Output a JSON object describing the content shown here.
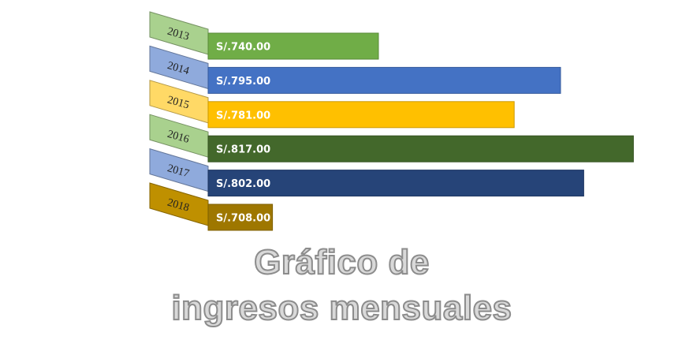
{
  "chart_data": {
    "type": "bar",
    "orientation": "horizontal",
    "categories": [
      "2013",
      "2014",
      "2015",
      "2016",
      "2017",
      "2018"
    ],
    "values": [
      740,
      795,
      781,
      817,
      802,
      708
    ],
    "value_labels": [
      "S/.740.00",
      "S/.795.00",
      "S/.781.00",
      "S/.817.00",
      "S/.802.00",
      "S/.708.00"
    ],
    "colors": [
      "#70ad47",
      "#4472c4",
      "#ffc000",
      "#43682b",
      "#264478",
      "#9e7700"
    ],
    "tab_colors": [
      "#a9d18e",
      "#8faadc",
      "#ffd966",
      "#a9d18e",
      "#8faadc",
      "#bf9000"
    ],
    "title_lines": [
      "Gráfico de",
      "ingresos mensuales"
    ]
  }
}
